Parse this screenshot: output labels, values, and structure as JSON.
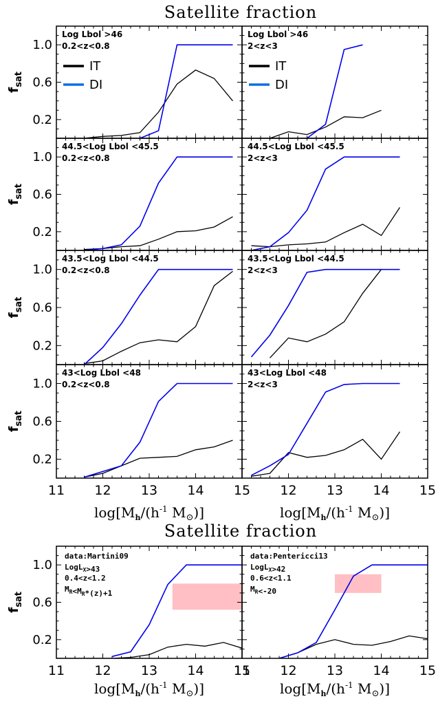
{
  "top_title": "Satellite fraction",
  "bottom_title": "Satellite fraction",
  "ylabel": "f",
  "ylabel_sub": "sat",
  "xlabel": "log[M",
  "xlabel_sub": "h",
  "xlabel_rest": "/(h",
  "xlabel_sup": "-1",
  "xlabel_end": " M",
  "xlabel_sun": "⊙",
  "xlabel_close": ")]",
  "colors": {
    "IT": "#000000",
    "DI": "#0000ee",
    "legend_DI": "#0a6fe8",
    "box": "#ffbfc4"
  },
  "legend": [
    {
      "label": "IT"
    },
    {
      "label": "DI"
    }
  ],
  "chart_data": [
    {
      "type": "line",
      "row": 0,
      "col": 0,
      "annotation": [
        "Log Lbol >46",
        "0.2<z<0.8"
      ],
      "legend": true,
      "xlim": [
        11,
        15
      ],
      "ylim": [
        0,
        1.2
      ],
      "yticks": [
        "0.2",
        "0.6",
        "1.0"
      ],
      "series": [
        {
          "name": "IT",
          "x": [
            11.6,
            12.0,
            12.4,
            12.8,
            13.2,
            13.6,
            14.0,
            14.4,
            14.8
          ],
          "y": [
            0.0,
            0.02,
            0.03,
            0.06,
            0.28,
            0.58,
            0.73,
            0.64,
            0.4
          ]
        },
        {
          "name": "DI",
          "x": [
            12.8,
            13.2,
            13.6,
            14.0,
            14.4,
            14.8
          ],
          "y": [
            0.0,
            0.08,
            1.0,
            1.0,
            1.0,
            1.0
          ]
        }
      ]
    },
    {
      "type": "line",
      "row": 0,
      "col": 1,
      "annotation": [
        "Log Lbol >46",
        "2<z<3"
      ],
      "legend": true,
      "xlim": [
        11,
        15
      ],
      "ylim": [
        0,
        1.2
      ],
      "yticks": [],
      "series": [
        {
          "name": "IT",
          "x": [
            11.6,
            12.0,
            12.4,
            12.8,
            13.2,
            13.6,
            14.0
          ],
          "y": [
            0.0,
            0.07,
            0.04,
            0.12,
            0.23,
            0.22,
            0.3
          ]
        },
        {
          "name": "DI",
          "x": [
            12.4,
            12.8,
            13.2,
            13.6
          ],
          "y": [
            0.0,
            0.15,
            0.95,
            1.0
          ]
        }
      ]
    },
    {
      "type": "line",
      "row": 1,
      "col": 0,
      "annotation": [
        "44.5<Log Lbol <45.5",
        "0.2<z<0.8"
      ],
      "xlim": [
        11,
        15
      ],
      "ylim": [
        0,
        1.2
      ],
      "yticks": [
        "0.2",
        "0.6",
        "1.0"
      ],
      "series": [
        {
          "name": "IT",
          "x": [
            11.6,
            12.0,
            12.4,
            12.8,
            13.2,
            13.6,
            14.0,
            14.4,
            14.8
          ],
          "y": [
            0.01,
            0.02,
            0.04,
            0.05,
            0.12,
            0.2,
            0.21,
            0.25,
            0.36
          ]
        },
        {
          "name": "DI",
          "x": [
            11.6,
            12.0,
            12.4,
            12.8,
            13.2,
            13.6,
            14.0,
            14.4,
            14.8
          ],
          "y": [
            0.0,
            0.02,
            0.06,
            0.26,
            0.72,
            1.0,
            1.0,
            1.0,
            1.0
          ]
        }
      ]
    },
    {
      "type": "line",
      "row": 1,
      "col": 1,
      "annotation": [
        "44.5<Log Lbol <45.5",
        "2<z<3"
      ],
      "xlim": [
        11,
        15
      ],
      "ylim": [
        0,
        1.2
      ],
      "yticks": [],
      "series": [
        {
          "name": "IT",
          "x": [
            11.2,
            11.6,
            12.0,
            12.4,
            12.8,
            13.2,
            13.6,
            14.0,
            14.4
          ],
          "y": [
            0.05,
            0.04,
            0.06,
            0.07,
            0.09,
            0.19,
            0.28,
            0.16,
            0.46
          ]
        },
        {
          "name": "DI",
          "x": [
            11.2,
            11.6,
            12.0,
            12.4,
            12.8,
            13.2,
            13.6,
            14.0,
            14.4
          ],
          "y": [
            0.0,
            0.04,
            0.19,
            0.43,
            0.87,
            1.0,
            1.0,
            1.0,
            1.0
          ]
        }
      ]
    },
    {
      "type": "line",
      "row": 2,
      "col": 0,
      "annotation": [
        "43.5<Log Lbol <44.5",
        "0.2<z<0.8"
      ],
      "xlim": [
        11,
        15
      ],
      "ylim": [
        0,
        1.2
      ],
      "yticks": [
        "0.2",
        "0.6",
        "1.0"
      ],
      "series": [
        {
          "name": "IT",
          "x": [
            11.6,
            12.0,
            12.4,
            12.8,
            13.2,
            13.6,
            14.0,
            14.4,
            14.8
          ],
          "y": [
            0.01,
            0.04,
            0.14,
            0.23,
            0.26,
            0.24,
            0.4,
            0.83,
            0.98
          ]
        },
        {
          "name": "DI",
          "x": [
            11.6,
            12.0,
            12.4,
            12.8,
            13.2,
            13.6,
            14.0,
            14.4,
            14.8
          ],
          "y": [
            0.0,
            0.18,
            0.43,
            0.73,
            1.0,
            1.0,
            1.0,
            1.0,
            1.0
          ]
        }
      ]
    },
    {
      "type": "line",
      "row": 2,
      "col": 1,
      "annotation": [
        "43.5<Log Lbol <44.5",
        "2<z<3"
      ],
      "xlim": [
        11,
        15
      ],
      "ylim": [
        0,
        1.2
      ],
      "yticks": [],
      "series": [
        {
          "name": "IT",
          "x": [
            11.6,
            12.0,
            12.4,
            12.8,
            13.2,
            13.6,
            14.0,
            14.4
          ],
          "y": [
            0.07,
            0.28,
            0.24,
            0.32,
            0.45,
            0.75,
            1.0,
            1.0
          ]
        },
        {
          "name": "DI",
          "x": [
            11.2,
            11.6,
            12.0,
            12.4,
            12.8,
            13.2,
            13.6,
            14.0,
            14.4
          ],
          "y": [
            0.08,
            0.31,
            0.62,
            0.97,
            1.0,
            1.0,
            1.0,
            1.0,
            1.0
          ]
        }
      ]
    },
    {
      "type": "line",
      "row": 3,
      "col": 0,
      "annotation": [
        "43<Log Lbol <48",
        "0.2<z<0.8"
      ],
      "xlim": [
        11,
        15
      ],
      "ylim": [
        0,
        1.2
      ],
      "yticks": [
        "0.2",
        "0.6",
        "1.0"
      ],
      "series": [
        {
          "name": "IT",
          "x": [
            11.6,
            12.0,
            12.4,
            12.8,
            13.2,
            13.6,
            14.0,
            14.4,
            14.8
          ],
          "y": [
            0.01,
            0.05,
            0.13,
            0.21,
            0.22,
            0.23,
            0.3,
            0.33,
            0.4
          ]
        },
        {
          "name": "DI",
          "x": [
            11.6,
            12.0,
            12.4,
            12.8,
            13.2,
            13.6,
            14.0,
            14.4,
            14.8
          ],
          "y": [
            0.01,
            0.07,
            0.13,
            0.38,
            0.81,
            1.0,
            1.0,
            1.0,
            1.0
          ]
        }
      ]
    },
    {
      "type": "line",
      "row": 3,
      "col": 1,
      "annotation": [
        "43<Log Lbol <48",
        "2<z<3"
      ],
      "xlim": [
        11,
        15
      ],
      "ylim": [
        0,
        1.2
      ],
      "yticks": [],
      "series": [
        {
          "name": "IT",
          "x": [
            11.2,
            11.6,
            12.0,
            12.4,
            12.8,
            13.2,
            13.6,
            14.0,
            14.4
          ],
          "y": [
            0.02,
            0.05,
            0.27,
            0.22,
            0.24,
            0.3,
            0.41,
            0.2,
            0.49
          ]
        },
        {
          "name": "DI",
          "x": [
            11.2,
            11.6,
            12.0,
            12.4,
            12.8,
            13.2,
            13.6,
            14.0,
            14.4
          ],
          "y": [
            0.03,
            0.13,
            0.25,
            0.58,
            0.91,
            0.99,
            1.0,
            1.0,
            1.0
          ]
        }
      ]
    },
    {
      "type": "line",
      "row": 4,
      "col": 0,
      "annotation": [
        "data:Martini09",
        "LogL_X>43",
        "0.4<z<1.2",
        "M_R<M_R*(z)+1"
      ],
      "xlim": [
        11,
        15
      ],
      "ylim": [
        0,
        1.2
      ],
      "yticks": [
        "0.2",
        "0.6",
        "1.0"
      ],
      "xticks": [
        "11",
        "12",
        "13",
        "14",
        "15"
      ],
      "box": {
        "x": [
          13.5,
          15.0
        ],
        "y": [
          0.52,
          0.8
        ]
      },
      "series": [
        {
          "name": "IT",
          "x": [
            11.0,
            11.4,
            11.8,
            12.2,
            12.6,
            13.0,
            13.4,
            13.8,
            14.2,
            14.6,
            15.0
          ],
          "y": [
            0.0,
            0.0,
            0.0,
            0.0,
            0.01,
            0.04,
            0.12,
            0.15,
            0.13,
            0.17,
            0.11
          ]
        },
        {
          "name": "DI",
          "x": [
            12.2,
            12.6,
            13.0,
            13.4,
            13.8,
            14.2,
            14.6,
            15.0
          ],
          "y": [
            0.02,
            0.07,
            0.36,
            0.79,
            1.0,
            1.0,
            1.0,
            1.0
          ]
        }
      ]
    },
    {
      "type": "line",
      "row": 4,
      "col": 1,
      "annotation": [
        "data:Pentericci13",
        "LogL_X>42",
        "0.6<z<1.1",
        "M_R<-20"
      ],
      "xlim": [
        11,
        15
      ],
      "ylim": [
        0,
        1.2
      ],
      "yticks": [],
      "xticks": [
        "11",
        "12",
        "13",
        "14",
        "15"
      ],
      "box": {
        "x": [
          13.0,
          14.0
        ],
        "y": [
          0.7,
          0.9
        ]
      },
      "series": [
        {
          "name": "IT",
          "x": [
            11.8,
            12.2,
            12.6,
            13.0,
            13.4,
            13.8,
            14.2,
            14.6,
            15.0
          ],
          "y": [
            0.0,
            0.06,
            0.15,
            0.2,
            0.15,
            0.14,
            0.18,
            0.24,
            0.21
          ]
        },
        {
          "name": "DI",
          "x": [
            11.8,
            12.2,
            12.6,
            13.0,
            13.4,
            13.8,
            14.2,
            14.6,
            15.0
          ],
          "y": [
            0.0,
            0.06,
            0.17,
            0.52,
            0.88,
            1.0,
            1.0,
            1.0,
            1.0
          ]
        }
      ]
    }
  ]
}
